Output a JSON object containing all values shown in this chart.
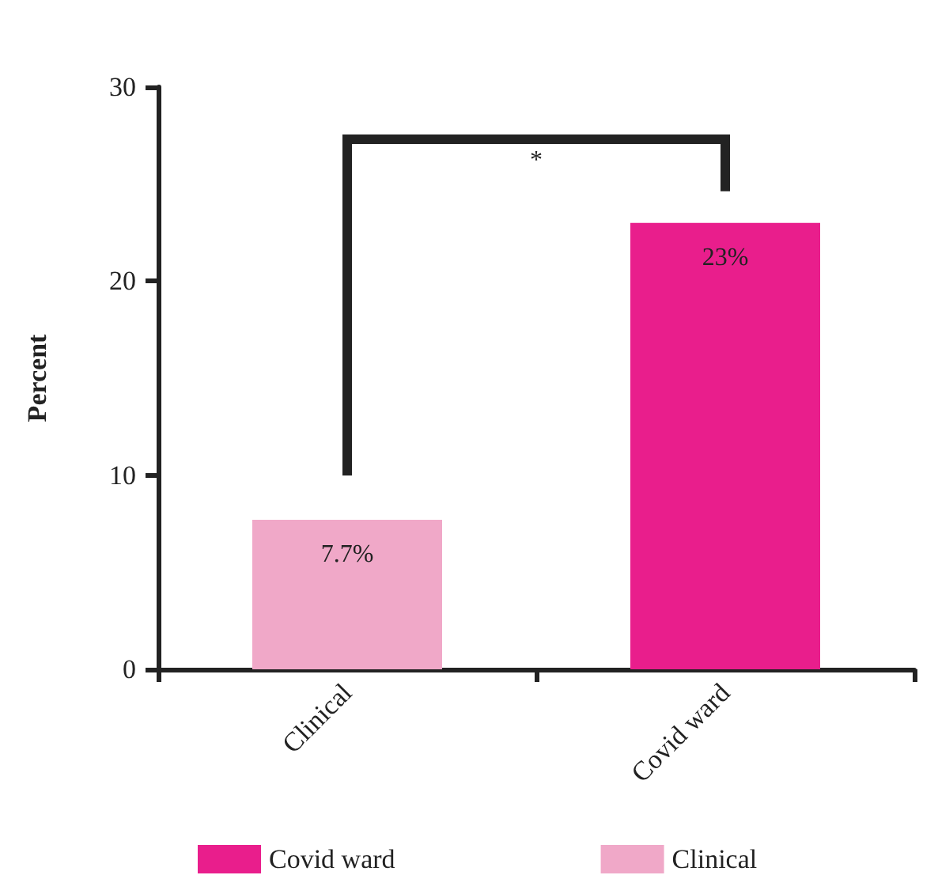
{
  "chart_data": {
    "type": "bar",
    "ylabel": "Percent",
    "categories": [
      "Clinical",
      "Covid ward"
    ],
    "stacked": true,
    "series": [
      {
        "name": "Covid ward",
        "color": "#e91e8c",
        "values": [
          null,
          23
        ],
        "value_labels": [
          null,
          "23%"
        ]
      },
      {
        "name": "Clinical",
        "color": "#f0a8c8",
        "values": [
          7.7,
          null
        ],
        "value_labels": [
          "7.7%",
          null
        ]
      }
    ],
    "ylim": [
      0,
      30
    ],
    "yticks": [
      0,
      10,
      20,
      30
    ],
    "grid": false,
    "legend": "bottom",
    "annotations": [
      "*"
    ]
  }
}
